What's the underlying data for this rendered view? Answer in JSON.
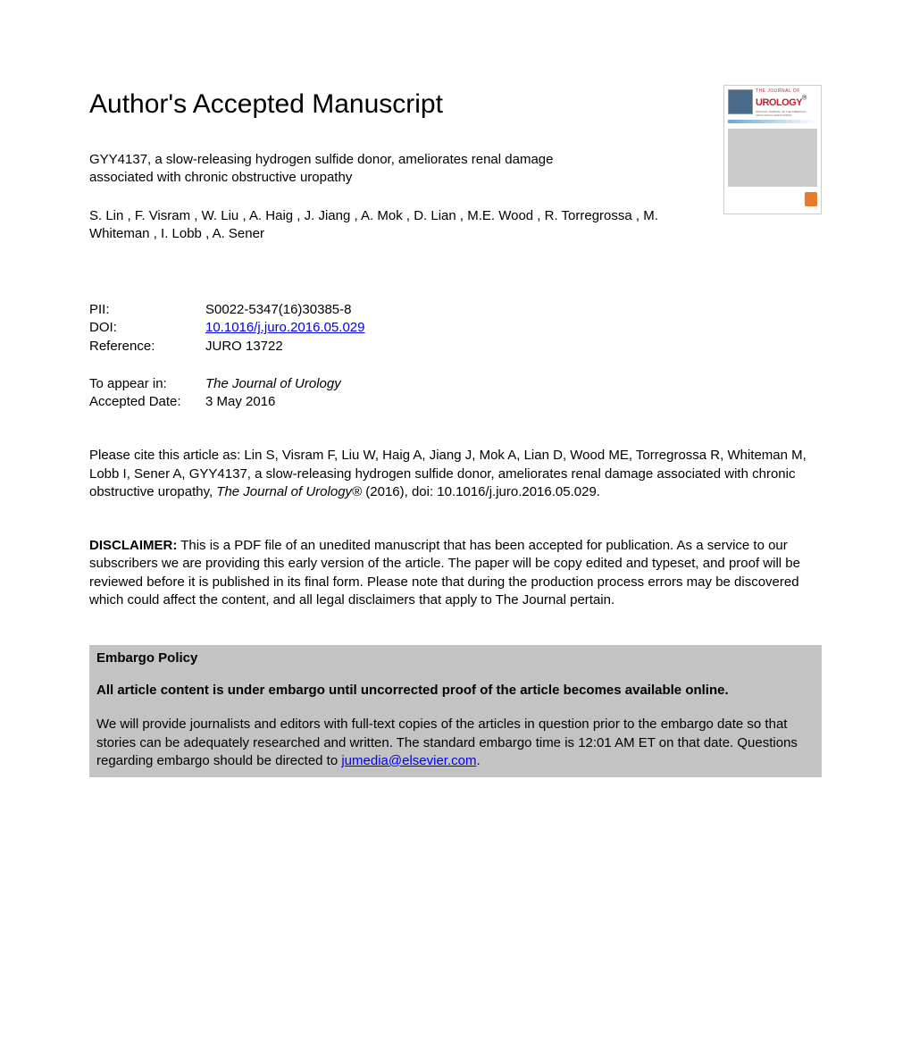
{
  "heading": "Author's Accepted Manuscript",
  "journal_cover": {
    "small_title": "THE JOURNAL OF",
    "large_title": "UROLOGY",
    "registered": "®",
    "subtitle": "OFFICIAL JOURNAL OF THE AMERICAN UROLOGICAL ASSOCIATION"
  },
  "article": {
    "title": "GYY4137, a slow-releasing hydrogen sulfide donor, ameliorates renal damage associated with chronic obstructive uropathy",
    "authors": "S. Lin , F. Visram , W. Liu , A. Haig , J. Jiang , A. Mok , D. Lian , M.E. Wood , R. Torregrossa , M. Whiteman , I. Lobb , A. Sener"
  },
  "meta": {
    "pii_label": "PII:",
    "pii_value": "S0022-5347(16)30385-8",
    "doi_label": "DOI:",
    "doi_value": "10.1016/j.juro.2016.05.029",
    "ref_label": "Reference:",
    "ref_value": "JURO 13722"
  },
  "appear": {
    "appear_label": "To appear in:",
    "appear_value": "The Journal of Urology",
    "accepted_label": "Accepted Date:",
    "accepted_value": "3 May 2016"
  },
  "citation": {
    "prefix": "Please cite this article as: Lin S, Visram F, Liu W, Haig A, Jiang J, Mok A, Lian D, Wood ME, Torregrossa R, Whiteman M, Lobb I, Sener A, GYY4137, a slow-releasing hydrogen sulfide donor, ameliorates renal damage associated with chronic obstructive uropathy, ",
    "journal": "The Journal of Urology®",
    "suffix": " (2016), doi: 10.1016/j.juro.2016.05.029."
  },
  "disclaimer": {
    "label": "DISCLAIMER:",
    "text": " This is a PDF file of an unedited manuscript that has been accepted for publication. As a service to our subscribers we are providing this early version of the article. The paper will be copy edited and typeset, and proof will be reviewed before it is published in its final form. Please note that during the production process errors may be discovered which could affect the content, and all legal disclaimers that apply to The Journal pertain."
  },
  "embargo": {
    "title": "Embargo Policy",
    "statement": "All article content is under embargo until uncorrected proof of the article becomes available online.",
    "body_prefix": "We will provide journalists and editors with full-text copies of the articles in question prior to the embargo date so that stories can be adequately researched and written. The standard embargo time is 12:01 AM ET on that date. Questions regarding embargo should be directed to ",
    "email": "jumedia@elsevier.com",
    "body_suffix": "."
  }
}
